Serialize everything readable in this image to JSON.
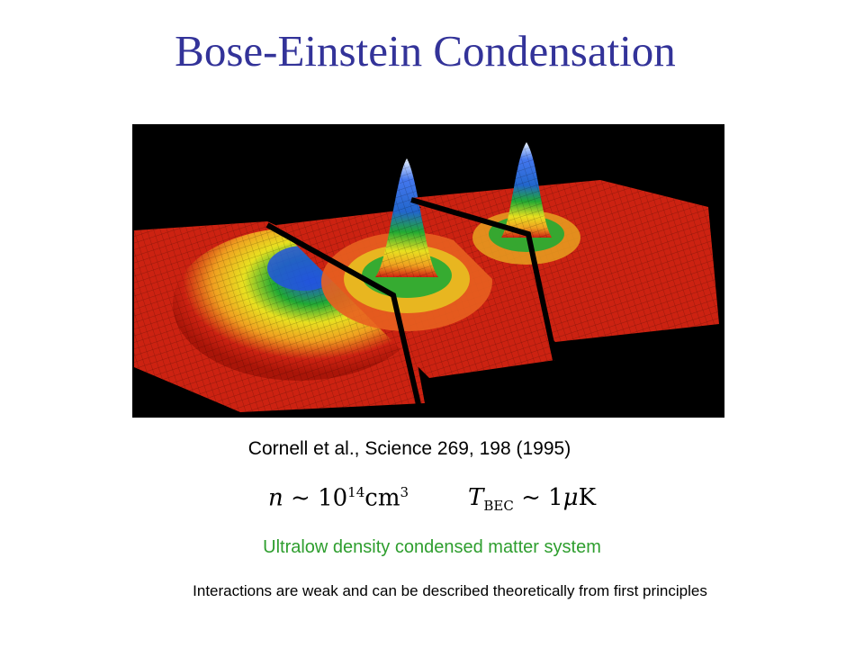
{
  "slide": {
    "title": "Bose-Einstein Condensation",
    "citation": "Cornell et al., Science 269, 198 (1995)",
    "formula": {
      "density_symbol": "n",
      "density_approx": "~",
      "density_base": "10",
      "density_exponent": "14",
      "density_unit": "cm",
      "density_unit_exponent": "3",
      "temperature_symbol": "T",
      "temperature_subscript": "BEC",
      "temperature_approx": "~",
      "temperature_value": "1",
      "temperature_unit_prefix": "μ",
      "temperature_unit": "K"
    },
    "subtitle": "Ultralow density condensed matter system",
    "note": "Interactions are weak and can be described theoretically from first principles"
  },
  "figure": {
    "description_icon": "velocity-distribution-surface-plot",
    "colors": {
      "background": "#000000",
      "low": "#cc2211",
      "mid_low": "#f0a020",
      "mid": "#e8e020",
      "mid_high": "#22aa33",
      "high": "#2255dd",
      "peak": "#ddeeff"
    }
  }
}
